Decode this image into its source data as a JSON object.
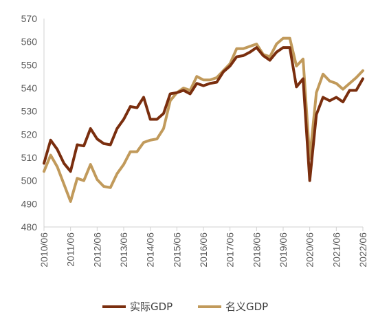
{
  "chart_data": {
    "type": "line",
    "ylim": [
      480,
      570
    ],
    "yticks": [
      480,
      490,
      500,
      510,
      520,
      530,
      540,
      550,
      560,
      570
    ],
    "xlim": [
      2010.4167,
      2022.4167
    ],
    "xticks": [
      {
        "label": "2010/06",
        "x": 2010.4167
      },
      {
        "label": "2011/06",
        "x": 2011.4167
      },
      {
        "label": "2012/06",
        "x": 2012.4167
      },
      {
        "label": "2013/06",
        "x": 2013.4167
      },
      {
        "label": "2014/06",
        "x": 2014.4167
      },
      {
        "label": "2015/06",
        "x": 2015.4167
      },
      {
        "label": "2016/06",
        "x": 2016.4167
      },
      {
        "label": "2017/06",
        "x": 2017.4167
      },
      {
        "label": "2018/06",
        "x": 2018.4167
      },
      {
        "label": "2019/06",
        "x": 2019.4167
      },
      {
        "label": "2020/06",
        "x": 2020.4167
      },
      {
        "label": "2021/06",
        "x": 2021.4167
      },
      {
        "label": "2022/06",
        "x": 2022.4167
      }
    ],
    "grid": false,
    "legend": "bottom",
    "series": [
      {
        "name": "实际GDP",
        "color": "#7a2e0e",
        "points": [
          [
            2010.4167,
            507.5
          ],
          [
            2010.6667,
            517.5
          ],
          [
            2010.9167,
            513.5
          ],
          [
            2011.1667,
            507.5
          ],
          [
            2011.4167,
            504.0
          ],
          [
            2011.6667,
            515.5
          ],
          [
            2011.9167,
            515.0
          ],
          [
            2012.1667,
            522.5
          ],
          [
            2012.4167,
            518.0
          ],
          [
            2012.6667,
            516.0
          ],
          [
            2012.9167,
            515.5
          ],
          [
            2013.1667,
            522.5
          ],
          [
            2013.4167,
            526.5
          ],
          [
            2013.6667,
            532.0
          ],
          [
            2013.9167,
            531.5
          ],
          [
            2014.1667,
            536.0
          ],
          [
            2014.4167,
            526.5
          ],
          [
            2014.6667,
            526.5
          ],
          [
            2014.9167,
            529.0
          ],
          [
            2015.1667,
            537.5
          ],
          [
            2015.4167,
            538.0
          ],
          [
            2015.6667,
            539.0
          ],
          [
            2015.9167,
            537.5
          ],
          [
            2016.1667,
            542.0
          ],
          [
            2016.4167,
            541.0
          ],
          [
            2016.6667,
            542.0
          ],
          [
            2016.9167,
            542.5
          ],
          [
            2017.1667,
            547.0
          ],
          [
            2017.4167,
            549.5
          ],
          [
            2017.6667,
            553.5
          ],
          [
            2017.9167,
            554.0
          ],
          [
            2018.1667,
            555.5
          ],
          [
            2018.4167,
            557.5
          ],
          [
            2018.6667,
            554.0
          ],
          [
            2018.9167,
            552.0
          ],
          [
            2019.1667,
            555.5
          ],
          [
            2019.4167,
            557.5
          ],
          [
            2019.6667,
            557.5
          ],
          [
            2019.9167,
            540.5
          ],
          [
            2020.1667,
            544.0
          ],
          [
            2020.4167,
            500.0
          ],
          [
            2020.6667,
            528.5
          ],
          [
            2020.9167,
            536.0
          ],
          [
            2021.1667,
            534.5
          ],
          [
            2021.4167,
            536.0
          ],
          [
            2021.6667,
            534.0
          ],
          [
            2021.9167,
            539.0
          ],
          [
            2022.1667,
            539.0
          ],
          [
            2022.4167,
            544.0
          ]
        ]
      },
      {
        "name": "名义GDP",
        "color": "#c19a5b",
        "points": [
          [
            2010.4167,
            504.0
          ],
          [
            2010.6667,
            511.0
          ],
          [
            2010.9167,
            506.0
          ],
          [
            2011.1667,
            498.5
          ],
          [
            2011.4167,
            491.0
          ],
          [
            2011.6667,
            501.0
          ],
          [
            2011.9167,
            500.0
          ],
          [
            2012.1667,
            507.0
          ],
          [
            2012.4167,
            500.5
          ],
          [
            2012.6667,
            497.5
          ],
          [
            2012.9167,
            497.0
          ],
          [
            2013.1667,
            503.0
          ],
          [
            2013.4167,
            507.0
          ],
          [
            2013.6667,
            512.5
          ],
          [
            2013.9167,
            512.5
          ],
          [
            2014.1667,
            516.5
          ],
          [
            2014.4167,
            517.5
          ],
          [
            2014.6667,
            518.0
          ],
          [
            2014.9167,
            522.5
          ],
          [
            2015.1667,
            534.5
          ],
          [
            2015.4167,
            538.0
          ],
          [
            2015.6667,
            540.0
          ],
          [
            2015.9167,
            539.0
          ],
          [
            2016.1667,
            545.0
          ],
          [
            2016.4167,
            543.5
          ],
          [
            2016.6667,
            543.5
          ],
          [
            2016.9167,
            544.5
          ],
          [
            2017.1667,
            547.5
          ],
          [
            2017.4167,
            550.5
          ],
          [
            2017.6667,
            557.0
          ],
          [
            2017.9167,
            557.0
          ],
          [
            2018.1667,
            558.0
          ],
          [
            2018.4167,
            559.0
          ],
          [
            2018.6667,
            554.5
          ],
          [
            2018.9167,
            553.5
          ],
          [
            2019.1667,
            559.0
          ],
          [
            2019.4167,
            561.5
          ],
          [
            2019.6667,
            561.5
          ],
          [
            2019.9167,
            549.5
          ],
          [
            2020.1667,
            552.5
          ],
          [
            2020.4167,
            509.5
          ],
          [
            2020.6667,
            538.0
          ],
          [
            2020.9167,
            546.0
          ],
          [
            2021.1667,
            543.0
          ],
          [
            2021.4167,
            542.0
          ],
          [
            2021.6667,
            539.5
          ],
          [
            2021.9167,
            542.0
          ],
          [
            2022.1667,
            544.5
          ],
          [
            2022.4167,
            547.5
          ]
        ]
      }
    ]
  }
}
